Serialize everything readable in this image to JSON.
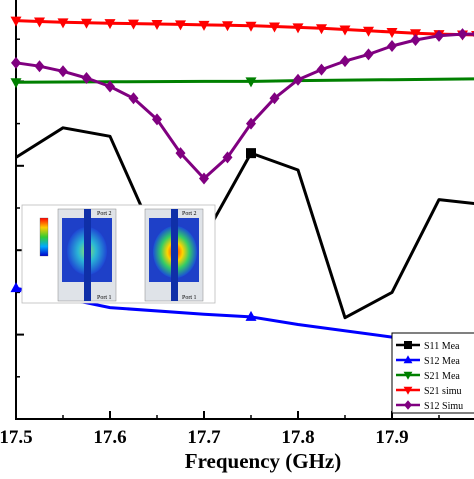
{
  "chart_data": {
    "type": "line",
    "xlabel": "Frequency (GHz)",
    "ylabel": "",
    "x_ticks": [
      "17.5",
      "17.6",
      "17.7",
      "17.8",
      "17.9"
    ],
    "xlim": [
      17.5,
      18.0
    ],
    "ylim": [
      -50,
      0
    ],
    "grid": false,
    "legend_position": "bottom-right",
    "series": [
      {
        "name": "S11 Mea",
        "color": "#000000",
        "marker": "square",
        "x": [
          17.5,
          17.55,
          17.6,
          17.65,
          17.7,
          17.75,
          17.8,
          17.85,
          17.9,
          17.95,
          17.99
        ],
        "y": [
          -19,
          -15.5,
          -16.5,
          -29,
          -28.5,
          -18.5,
          -20.5,
          -38,
          -35,
          -24,
          -24.5
        ]
      },
      {
        "name": "S12 Mea",
        "color": "#0000ff",
        "marker": "triangle-up",
        "x": [
          17.5,
          17.6,
          17.7,
          17.75,
          17.8,
          17.9,
          17.99
        ],
        "y": [
          -34.5,
          -36.8,
          -37.6,
          -37.9,
          -38.8,
          -40.3,
          -41.5
        ]
      },
      {
        "name": "S21 Mea",
        "color": "#008000",
        "marker": "triangle-down",
        "x": [
          17.5,
          17.6,
          17.7,
          17.75,
          17.8,
          17.9,
          17.99
        ],
        "y": [
          -10.1,
          -10.05,
          -10,
          -10,
          -9.9,
          -9.8,
          -9.7
        ]
      },
      {
        "name": "S21 simu",
        "color": "#ff0000",
        "marker": "triangle-down",
        "x": [
          17.5,
          17.525,
          17.55,
          17.575,
          17.6,
          17.625,
          17.65,
          17.675,
          17.7,
          17.725,
          17.75,
          17.775,
          17.8,
          17.825,
          17.85,
          17.875,
          17.9,
          17.925,
          17.95,
          17.975,
          17.99
        ],
        "y": [
          -2.8,
          -2.9,
          -3.0,
          -3.05,
          -3.1,
          -3.15,
          -3.2,
          -3.25,
          -3.3,
          -3.35,
          -3.4,
          -3.5,
          -3.6,
          -3.7,
          -3.85,
          -4.0,
          -4.15,
          -4.3,
          -4.4,
          -4.45,
          -4.5
        ]
      },
      {
        "name": "S12 Simu",
        "color": "#800080",
        "marker": "diamond",
        "x": [
          17.5,
          17.525,
          17.55,
          17.575,
          17.6,
          17.625,
          17.65,
          17.675,
          17.7,
          17.725,
          17.75,
          17.775,
          17.8,
          17.825,
          17.85,
          17.875,
          17.9,
          17.925,
          17.95,
          17.975,
          17.99
        ],
        "y": [
          -7.8,
          -8.2,
          -8.8,
          -9.6,
          -10.6,
          -12,
          -14.5,
          -18.5,
          -21.5,
          -19,
          -15,
          -12,
          -9.8,
          -8.6,
          -7.6,
          -6.8,
          -5.8,
          -5.1,
          -4.6,
          -4.4,
          -4.4
        ]
      }
    ]
  },
  "inset": {
    "panel_labels": [
      {
        "top": "Port 2",
        "bottom": "Port 1"
      },
      {
        "top": "Port 2",
        "bottom": "Port 1"
      }
    ]
  }
}
